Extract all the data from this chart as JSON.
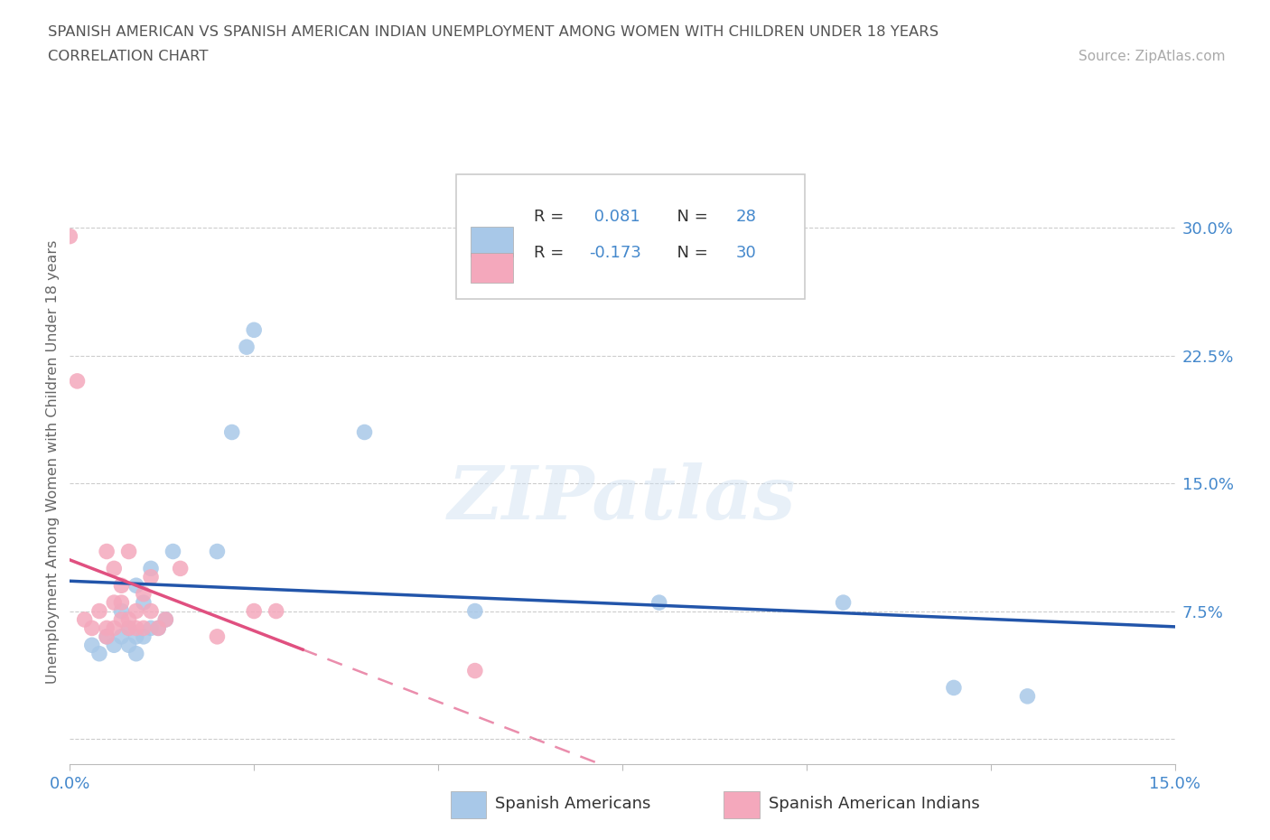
{
  "title_line1": "SPANISH AMERICAN VS SPANISH AMERICAN INDIAN UNEMPLOYMENT AMONG WOMEN WITH CHILDREN UNDER 18 YEARS",
  "title_line2": "CORRELATION CHART",
  "source_text": "Source: ZipAtlas.com",
  "watermark": "ZIPatlas",
  "ylabel": "Unemployment Among Women with Children Under 18 years",
  "xlim": [
    0.0,
    0.15
  ],
  "ylim": [
    -0.015,
    0.34
  ],
  "blue_R": 0.081,
  "blue_N": 28,
  "pink_R": -0.173,
  "pink_N": 30,
  "blue_scatter_x": [
    0.003,
    0.004,
    0.005,
    0.006,
    0.007,
    0.007,
    0.008,
    0.008,
    0.009,
    0.009,
    0.009,
    0.01,
    0.01,
    0.011,
    0.011,
    0.012,
    0.013,
    0.014,
    0.02,
    0.022,
    0.024,
    0.025,
    0.04,
    0.055,
    0.08,
    0.105,
    0.12,
    0.13
  ],
  "blue_scatter_y": [
    0.055,
    0.05,
    0.06,
    0.055,
    0.06,
    0.075,
    0.055,
    0.065,
    0.05,
    0.06,
    0.09,
    0.06,
    0.08,
    0.065,
    0.1,
    0.065,
    0.07,
    0.11,
    0.11,
    0.18,
    0.23,
    0.24,
    0.18,
    0.075,
    0.08,
    0.08,
    0.03,
    0.025
  ],
  "pink_scatter_x": [
    0.0,
    0.001,
    0.002,
    0.003,
    0.004,
    0.005,
    0.005,
    0.005,
    0.006,
    0.006,
    0.006,
    0.007,
    0.007,
    0.007,
    0.008,
    0.008,
    0.008,
    0.009,
    0.009,
    0.01,
    0.01,
    0.011,
    0.011,
    0.012,
    0.013,
    0.015,
    0.02,
    0.025,
    0.028,
    0.055
  ],
  "pink_scatter_y": [
    0.295,
    0.21,
    0.07,
    0.065,
    0.075,
    0.06,
    0.065,
    0.11,
    0.065,
    0.08,
    0.1,
    0.07,
    0.08,
    0.09,
    0.065,
    0.07,
    0.11,
    0.065,
    0.075,
    0.065,
    0.085,
    0.095,
    0.075,
    0.065,
    0.07,
    0.1,
    0.06,
    0.075,
    0.075,
    0.04
  ],
  "blue_color": "#a8c8e8",
  "pink_color": "#f4a8bc",
  "blue_line_color": "#2255aa",
  "pink_line_color": "#e05080",
  "grid_color": "#cccccc",
  "bg_color": "#ffffff",
  "axis_color": "#4488cc",
  "title_color": "#555555"
}
